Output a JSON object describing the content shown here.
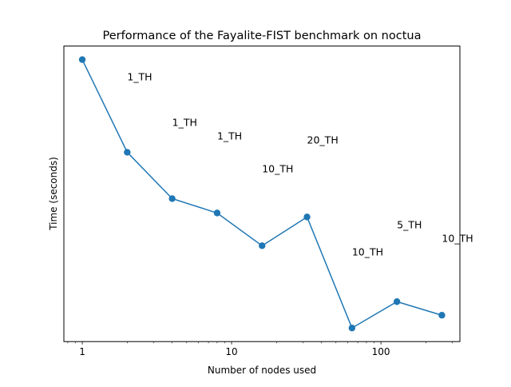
{
  "chart_data": {
    "type": "line",
    "title": "Performance of the Fayalite-FIST benchmark on noctua",
    "xlabel": "Number of nodes used",
    "ylabel": "Time (seconds)",
    "xscale": "log",
    "xlim": [
      0.753,
      338
    ],
    "ylim": [
      0,
      370
    ],
    "y_units_note_hidden": true,
    "xticks": [
      {
        "value": 1,
        "label": "1"
      },
      {
        "value": 10,
        "label": "10"
      },
      {
        "value": 100,
        "label": "100"
      }
    ],
    "grid": false,
    "series": [
      {
        "name": "Fayalite-FIST",
        "color": "#1f77b4",
        "x": [
          1,
          2,
          4,
          8,
          16,
          32,
          64,
          128,
          256
        ],
        "y": [
          353,
          237,
          179,
          161,
          120,
          156,
          17,
          50,
          33
        ]
      }
    ],
    "annotations": [
      {
        "text": "1_TH",
        "x": 2,
        "y": 332
      },
      {
        "text": "1_TH",
        "x": 4,
        "y": 275
      },
      {
        "text": "1_TH",
        "x": 8,
        "y": 258
      },
      {
        "text": "10_TH",
        "x": 16,
        "y": 217
      },
      {
        "text": "20_TH",
        "x": 32,
        "y": 253
      },
      {
        "text": "10_TH",
        "x": 64,
        "y": 113
      },
      {
        "text": "5_TH",
        "x": 128,
        "y": 147
      },
      {
        "text": "10_TH",
        "x": 256,
        "y": 130
      }
    ]
  }
}
